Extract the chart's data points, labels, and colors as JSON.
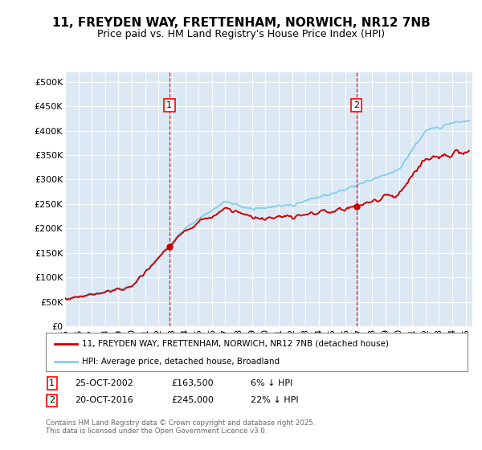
{
  "title": "11, FREYDEN WAY, FRETTENHAM, NORWICH, NR12 7NB",
  "subtitle": "Price paid vs. HM Land Registry's House Price Index (HPI)",
  "ylabel_ticks": [
    "£0",
    "£50K",
    "£100K",
    "£150K",
    "£200K",
    "£250K",
    "£300K",
    "£350K",
    "£400K",
    "£450K",
    "£500K"
  ],
  "ytick_values": [
    0,
    50000,
    100000,
    150000,
    200000,
    250000,
    300000,
    350000,
    400000,
    450000,
    500000
  ],
  "ylim": [
    0,
    520000
  ],
  "xlim_start": 1995.0,
  "xlim_end": 2025.5,
  "hpi_color": "#87CEEB",
  "price_color": "#CC0000",
  "sale1_date": 2002.81,
  "sale1_price": 163500,
  "sale2_date": 2016.81,
  "sale2_price": 245000,
  "legend_label_price": "11, FREYDEN WAY, FRETTENHAM, NORWICH, NR12 7NB (detached house)",
  "legend_label_hpi": "HPI: Average price, detached house, Broadland",
  "background_color": "#dce9f5",
  "title_fontsize": 11,
  "subtitle_fontsize": 9,
  "tick_fontsize": 8,
  "footer": "Contains HM Land Registry data © Crown copyright and database right 2025.\nThis data is licensed under the Open Government Licence v3.0."
}
